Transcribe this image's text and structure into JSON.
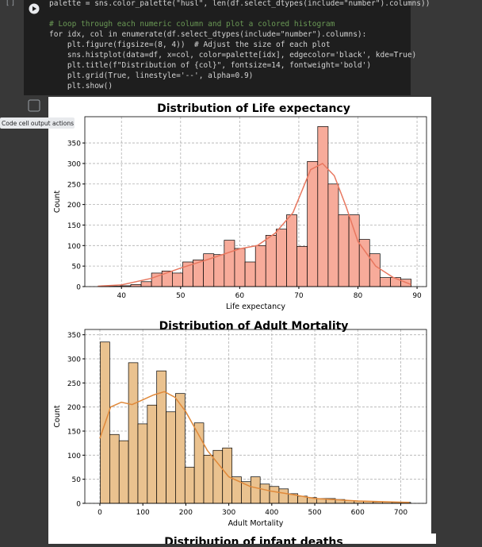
{
  "cell": {
    "run_indicator": "[ ]",
    "tooltip": "Code cell output actions",
    "code": [
      "palette = sns.color_palette(\"husl\", len(df.select_dtypes(include=\"number\").columns))",
      "",
      "# Loop through each numeric column and plot a colored histogram",
      "for idx, col in enumerate(df.select_dtypes(include=\"number\").columns):",
      "    plt.figure(figsize=(8, 4))  # Adjust the size of each plot",
      "    sns.histplot(data=df, x=col, color=palette[idx], edgecolor='black', kde=True)",
      "    plt.title(f\"Distribution of {col}\", fontsize=14, fontweight='bold')",
      "    plt.grid(True, linestyle='--', alpha=0.9)",
      "    plt.show()"
    ]
  },
  "chart_data": [
    {
      "type": "histogram",
      "title": "Distribution of Life expectancy",
      "x_label": "Life expectancy",
      "y_label": "Count",
      "bins": [
        36.3,
        38.06,
        39.81,
        41.57,
        43.33,
        45.08,
        46.84,
        48.6,
        50.36,
        52.11,
        53.87,
        55.63,
        57.38,
        59.14,
        60.9,
        62.66,
        64.41,
        66.17,
        67.93,
        69.68,
        71.44,
        73.2,
        74.96,
        76.71,
        78.47,
        80.23,
        81.98,
        83.74,
        85.5,
        87.25,
        89.01
      ],
      "counts": [
        1,
        1,
        2,
        5,
        12,
        33,
        38,
        33,
        60,
        65,
        80,
        78,
        113,
        93,
        60,
        100,
        125,
        140,
        175,
        98,
        305,
        390,
        250,
        175,
        175,
        115,
        80,
        22,
        22,
        18
      ],
      "color": "#f7ab9a",
      "edge_color": "#000000",
      "kde": {
        "color": "#e8775f",
        "x": [
          36,
          40,
          45,
          50,
          55,
          60,
          63,
          66,
          69,
          72,
          74,
          76,
          78,
          80,
          83,
          86,
          89
        ],
        "values": [
          1,
          4,
          20,
          45,
          68,
          92,
          100,
          130,
          180,
          285,
          300,
          270,
          195,
          110,
          50,
          22,
          5
        ]
      },
      "xlim": [
        33.8,
        91.6
      ],
      "xticks": [
        40,
        50,
        60,
        70,
        80,
        90
      ],
      "ylim": [
        0,
        414
      ],
      "yticks": [
        0,
        50,
        100,
        150,
        200,
        250,
        300,
        350
      ],
      "grid": true
    },
    {
      "type": "histogram",
      "title": "Distribution of Adult Mortality",
      "x_label": "Adult Mortality",
      "y_label": "Count",
      "bins": [
        1,
        22.88,
        44.76,
        66.64,
        88.52,
        110.4,
        132.28,
        154.16,
        176.04,
        197.92,
        219.8,
        241.68,
        263.56,
        285.44,
        307.32,
        329.2,
        351.08,
        372.96,
        394.84,
        416.72,
        438.6,
        460.48,
        482.36,
        504.24,
        526.12,
        548,
        569.88,
        591.76,
        613.64,
        635.52,
        657.4,
        679.28,
        701.16,
        723.04
      ],
      "counts": [
        335,
        143,
        130,
        292,
        165,
        204,
        275,
        190,
        228,
        75,
        167,
        100,
        110,
        115,
        55,
        45,
        55,
        40,
        35,
        30,
        20,
        15,
        12,
        10,
        10,
        8,
        6,
        5,
        4,
        3,
        3,
        2,
        2
      ],
      "color": "#eac28f",
      "edge_color": "#000000",
      "kde": {
        "color": "#e0893a",
        "x": [
          0,
          25,
          50,
          75,
          100,
          125,
          150,
          175,
          200,
          250,
          300,
          350,
          400,
          450,
          500,
          600,
          720
        ],
        "values": [
          135,
          200,
          210,
          205,
          215,
          225,
          232,
          220,
          190,
          110,
          55,
          35,
          25,
          18,
          10,
          5,
          2
        ]
      },
      "xlim": [
        -35,
        760
      ],
      "xticks": [
        0,
        100,
        200,
        300,
        400,
        500,
        600,
        700
      ],
      "ylim": [
        0,
        361
      ],
      "yticks": [
        0,
        50,
        100,
        150,
        200,
        250,
        300,
        350
      ],
      "grid": true
    },
    {
      "type": "histogram",
      "title": "Distribution of infant deaths"
    }
  ]
}
